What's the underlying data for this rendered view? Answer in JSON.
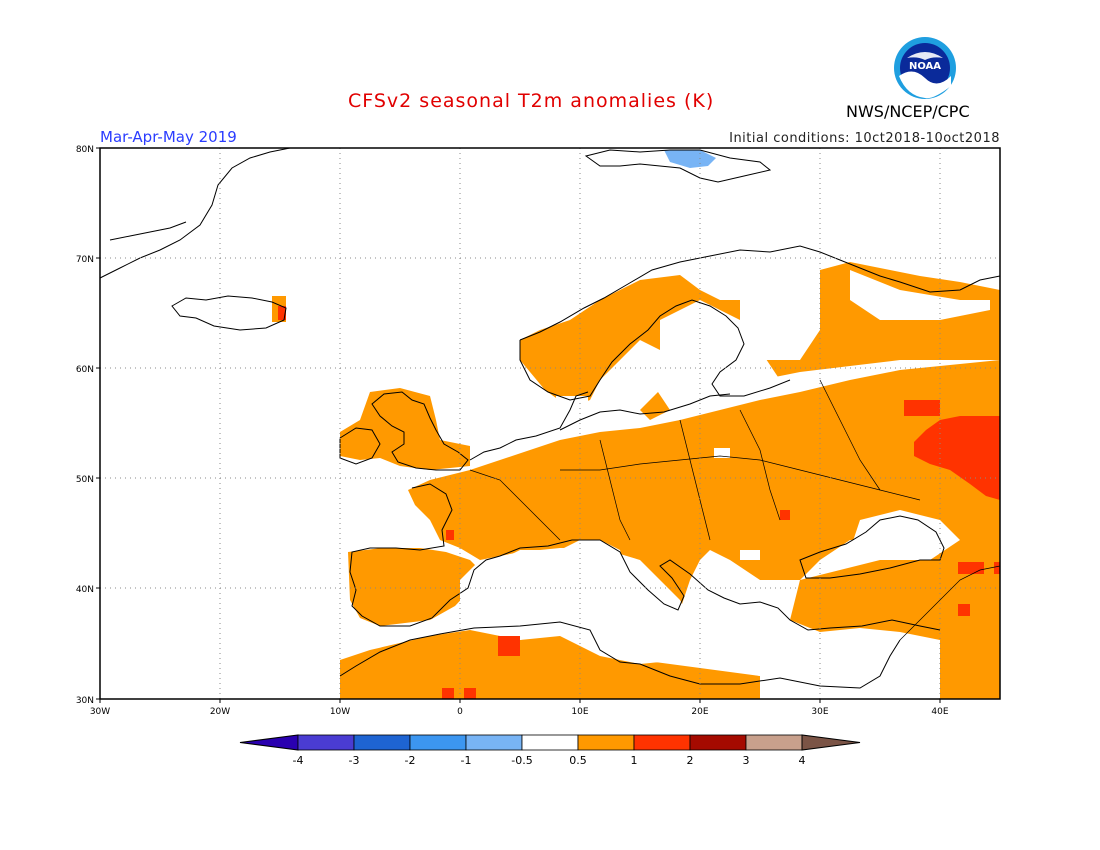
{
  "header": {
    "title": "CFSv2 seasonal T2m anomalies (K)",
    "period": "Mar-Apr-May 2019",
    "initial_conditions": "Initial conditions: 10ct2018-10oct2018",
    "agency": "NWS/NCEP/CPC",
    "logo_text": "NOAA"
  },
  "map": {
    "lat_labels": [
      "80N",
      "70N",
      "60N",
      "50N",
      "40N",
      "30N"
    ],
    "lon_labels": [
      "30W",
      "20W",
      "10W",
      "0",
      "10E",
      "20E",
      "30E",
      "40E"
    ],
    "colors": {
      "ocean": "#ffffff",
      "warm": "#ff9900",
      "hot": "#ff3300",
      "cool": "#78b4f5",
      "land_neutral": "#ffffff",
      "coast": "#000000"
    }
  },
  "colorbar": {
    "labels": [
      "-4",
      "-3",
      "-2",
      "-1",
      "-0.5",
      "0.5",
      "1",
      "2",
      "3",
      "4"
    ],
    "colors": [
      "#2a00b0",
      "#4a3cd2",
      "#1e64d2",
      "#3c96f0",
      "#78b4f5",
      "#ffffff",
      "#ff9900",
      "#ff3300",
      "#a50a00",
      "#c8a08c",
      "#7b5446"
    ]
  }
}
